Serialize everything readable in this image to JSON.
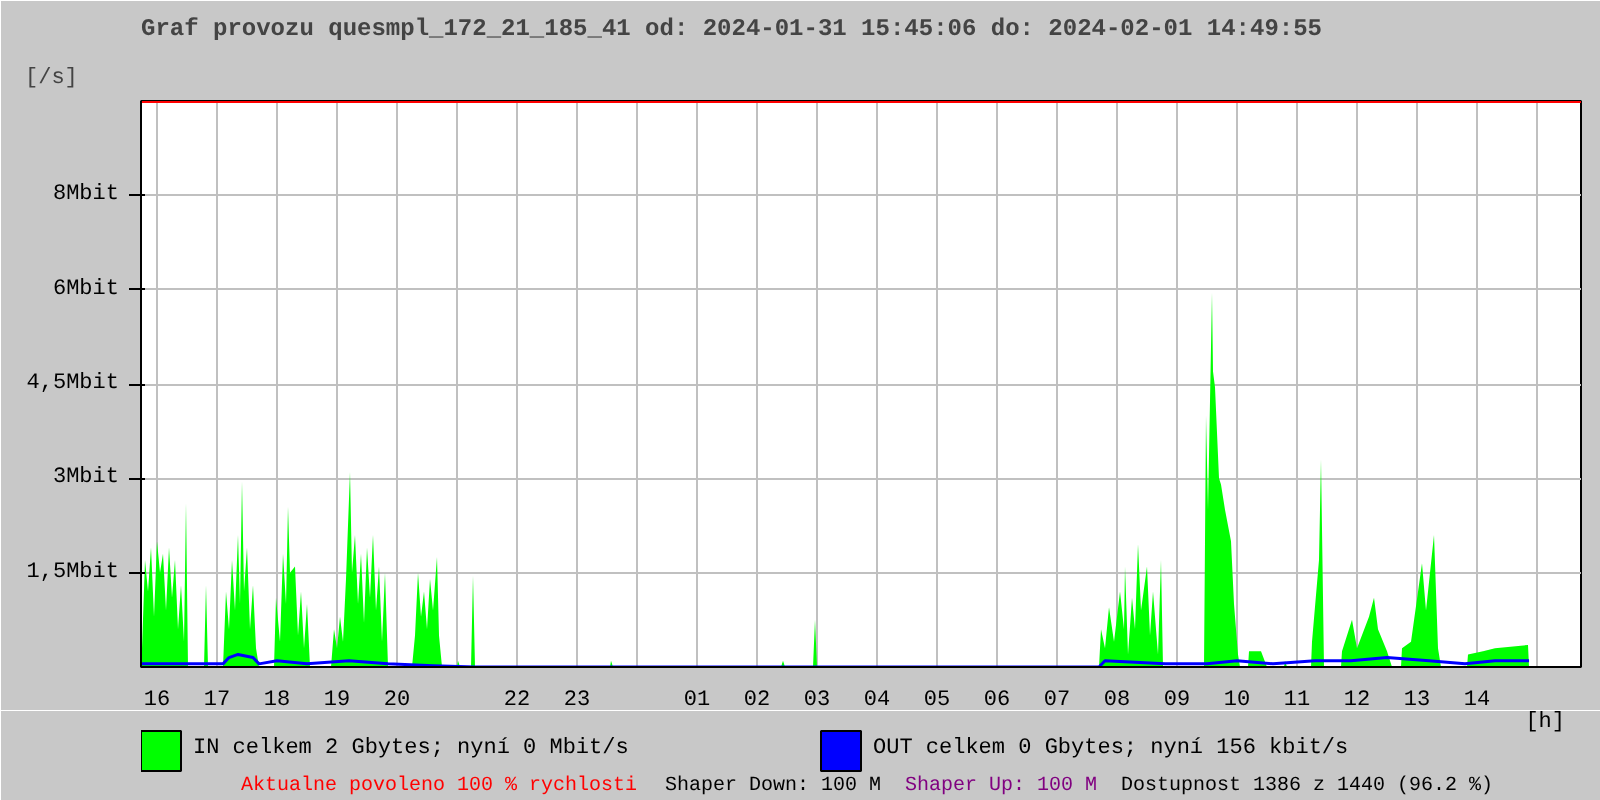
{
  "chart_data": {
    "type": "area",
    "title": "Graf provozu quesmpl_172_21_185_41 od: 2024-01-31 15:45:06 do: 2024-02-01 14:49:55",
    "xlabel": "[h]",
    "ylabel": "[/s]",
    "xlim": [
      "2024-01-31T15:44",
      "2024-02-01T15:44"
    ],
    "ylim": [
      0,
      9
    ],
    "xticks": [
      {
        "value": "2024-01-31T16:00",
        "label": "16"
      },
      {
        "value": "2024-01-31T17:00",
        "label": "17"
      },
      {
        "value": "2024-01-31T18:00",
        "label": "18"
      },
      {
        "value": "2024-01-31T19:00",
        "label": "19"
      },
      {
        "value": "2024-01-31T20:00",
        "label": "20"
      },
      {
        "value": "2024-01-31T21:00",
        "label": null
      },
      {
        "value": "2024-01-31T22:00",
        "label": "22"
      },
      {
        "value": "2024-01-31T23:00",
        "label": "23"
      },
      {
        "value": "2024-02-01T00:00",
        "label": null
      },
      {
        "value": "2024-02-01T01:00",
        "label": "01"
      },
      {
        "value": "2024-02-01T02:00",
        "label": "02"
      },
      {
        "value": "2024-02-01T03:00",
        "label": "03"
      },
      {
        "value": "2024-02-01T04:00",
        "label": "04"
      },
      {
        "value": "2024-02-01T05:00",
        "label": "05"
      },
      {
        "value": "2024-02-01T06:00",
        "label": "06"
      },
      {
        "value": "2024-02-01T07:00",
        "label": "07"
      },
      {
        "value": "2024-02-01T08:00",
        "label": "08"
      },
      {
        "value": "2024-02-01T09:00",
        "label": "09"
      },
      {
        "value": "2024-02-01T10:00",
        "label": "10"
      },
      {
        "value": "2024-02-01T11:00",
        "label": "11"
      },
      {
        "value": "2024-02-01T12:00",
        "label": "12"
      },
      {
        "value": "2024-02-01T13:00",
        "label": "13"
      },
      {
        "value": "2024-02-01T14:00",
        "label": "14"
      },
      {
        "value": "2024-02-01T15:00",
        "label": null
      }
    ],
    "yticks": [
      {
        "value": 1.5,
        "label": "1,5Mbit"
      },
      {
        "value": 3,
        "label": "3Mbit"
      },
      {
        "value": 4.5,
        "label": "4,5Mbit"
      },
      {
        "value": 6,
        "label": "6Mbit"
      },
      {
        "value": 7.5,
        "label": "8Mbit"
      }
    ],
    "grid": true,
    "legend": "bottom",
    "ref_lines": [
      {
        "axis": "y",
        "value": 9,
        "color": "#ff0000"
      }
    ],
    "series": [
      {
        "name": "IN celkem 2 Gbytes; nyní 0 Mbit/s",
        "color": "#00ff00",
        "x": [
          "2024-01-31T15:45",
          "2024-01-31T15:48",
          "2024-01-31T15:51",
          "2024-01-31T15:54",
          "2024-01-31T15:57",
          "2024-01-31T16:00",
          "2024-01-31T16:03",
          "2024-01-31T16:06",
          "2024-01-31T16:09",
          "2024-01-31T16:12",
          "2024-01-31T16:15",
          "2024-01-31T16:18",
          "2024-01-31T16:21",
          "2024-01-31T16:24",
          "2024-01-31T16:27",
          "2024-01-31T16:29",
          "2024-01-31T16:31",
          "2024-01-31T16:47",
          "2024-01-31T16:49",
          "2024-01-31T16:51",
          "2024-01-31T17:06",
          "2024-01-31T17:09",
          "2024-01-31T17:12",
          "2024-01-31T17:15",
          "2024-01-31T17:18",
          "2024-01-31T17:21",
          "2024-01-31T17:23",
          "2024-01-31T17:25",
          "2024-01-31T17:27",
          "2024-01-31T17:30",
          "2024-01-31T17:33",
          "2024-01-31T17:36",
          "2024-01-31T17:39",
          "2024-01-31T17:42",
          "2024-01-31T17:57",
          "2024-01-31T17:59",
          "2024-01-31T18:03",
          "2024-01-31T18:06",
          "2024-01-31T18:09",
          "2024-01-31T18:11",
          "2024-01-31T18:13",
          "2024-01-31T18:18",
          "2024-01-31T18:21",
          "2024-01-31T18:24",
          "2024-01-31T18:27",
          "2024-01-31T18:30",
          "2024-01-31T18:33",
          "2024-01-31T18:54",
          "2024-01-31T18:57",
          "2024-01-31T19:00",
          "2024-01-31T19:03",
          "2024-01-31T19:06",
          "2024-01-31T19:09",
          "2024-01-31T19:13",
          "2024-01-31T19:15",
          "2024-01-31T19:18",
          "2024-01-31T19:21",
          "2024-01-31T19:24",
          "2024-01-31T19:27",
          "2024-01-31T19:30",
          "2024-01-31T19:33",
          "2024-01-31T19:36",
          "2024-01-31T19:39",
          "2024-01-31T19:42",
          "2024-01-31T19:45",
          "2024-01-31T19:48",
          "2024-01-31T19:51",
          "2024-01-31T20:15",
          "2024-01-31T20:18",
          "2024-01-31T20:21",
          "2024-01-31T20:24",
          "2024-01-31T20:27",
          "2024-01-31T20:30",
          "2024-01-31T20:33",
          "2024-01-31T20:36",
          "2024-01-31T20:40",
          "2024-01-31T20:42",
          "2024-01-31T20:45",
          "2024-01-31T21:00",
          "2024-01-31T21:01",
          "2024-01-31T21:03",
          "2024-01-31T21:14",
          "2024-01-31T21:16",
          "2024-01-31T21:18",
          "2024-01-31T23:33",
          "2024-01-31T23:34",
          "2024-01-31T23:36",
          "2024-02-01T02:24",
          "2024-02-01T02:26",
          "2024-02-01T02:28",
          "2024-02-01T02:56",
          "2024-02-01T02:58",
          "2024-02-01T03:00",
          "2024-02-01T07:42",
          "2024-02-01T07:44",
          "2024-02-01T07:48",
          "2024-02-01T07:52",
          "2024-02-01T07:57",
          "2024-02-01T08:03",
          "2024-02-01T08:07",
          "2024-02-01T08:08",
          "2024-02-01T08:11",
          "2024-02-01T08:15",
          "2024-02-01T08:18",
          "2024-02-01T08:21",
          "2024-02-01T08:24",
          "2024-02-01T08:30",
          "2024-02-01T08:33",
          "2024-02-01T08:36",
          "2024-02-01T08:41",
          "2024-02-01T08:44",
          "2024-02-01T08:46",
          "2024-02-01T09:27",
          "2024-02-01T09:29",
          "2024-02-01T09:31",
          "2024-02-01T09:35",
          "2024-02-01T09:36",
          "2024-02-01T09:38",
          "2024-02-01T09:42",
          "2024-02-01T09:44",
          "2024-02-01T09:48",
          "2024-02-01T09:54",
          "2024-02-01T09:57",
          "2024-02-01T10:01",
          "2024-02-01T10:03",
          "2024-02-01T10:11",
          "2024-02-01T10:12",
          "2024-02-01T10:24",
          "2024-02-01T10:30",
          "2024-02-01T10:47",
          "2024-02-01T10:48",
          "2024-02-01T10:50",
          "2024-02-01T11:14",
          "2024-02-01T11:15",
          "2024-02-01T11:22",
          "2024-02-01T11:24",
          "2024-02-01T11:27",
          "2024-02-01T11:44",
          "2024-02-01T11:45",
          "2024-02-01T11:55",
          "2024-02-01T12:00",
          "2024-02-01T12:12",
          "2024-02-01T12:17",
          "2024-02-01T12:21",
          "2024-02-01T12:30",
          "2024-02-01T12:35",
          "2024-02-01T12:44",
          "2024-02-01T12:45",
          "2024-02-01T12:54",
          "2024-02-01T13:05",
          "2024-02-01T13:09",
          "2024-02-01T13:17",
          "2024-02-01T13:21",
          "2024-02-01T13:24",
          "2024-02-01T13:50",
          "2024-02-01T13:51",
          "2024-02-01T14:06",
          "2024-02-01T14:18",
          "2024-02-01T14:51",
          "2024-02-01T14:52"
        ],
        "values": [
          0.3,
          1.7,
          1.2,
          1.9,
          0.8,
          2.0,
          1.5,
          1.8,
          0.9,
          1.9,
          1.1,
          1.7,
          0.6,
          1.3,
          0.4,
          2.6,
          0.0,
          0.0,
          1.3,
          0.0,
          0.0,
          1.2,
          0.6,
          1.7,
          0.9,
          2.1,
          1.0,
          2.95,
          1.2,
          1.9,
          0.6,
          1.3,
          0.3,
          0.0,
          0.0,
          1.1,
          0.4,
          1.8,
          1.0,
          2.55,
          1.5,
          1.6,
          0.5,
          1.2,
          0.3,
          1.0,
          0.0,
          0.0,
          0.6,
          0.3,
          0.8,
          0.4,
          1.4,
          3.1,
          1.5,
          2.1,
          1.0,
          1.8,
          0.7,
          1.9,
          1.1,
          2.1,
          0.9,
          1.6,
          0.4,
          1.5,
          0.0,
          0.0,
          0.5,
          1.5,
          0.8,
          1.2,
          0.6,
          1.4,
          0.9,
          1.75,
          0.5,
          0.0,
          0.0,
          0.1,
          0.0,
          0.0,
          1.45,
          0.0,
          0.0,
          0.1,
          0.0,
          0.0,
          0.1,
          0.0,
          0.0,
          0.75,
          0.0,
          0.0,
          0.6,
          0.3,
          0.95,
          0.4,
          1.2,
          0.6,
          1.6,
          0.2,
          1.1,
          0.6,
          1.95,
          0.9,
          1.6,
          0.5,
          1.2,
          0.2,
          1.7,
          0.0,
          0.0,
          4.0,
          2.5,
          5.95,
          4.7,
          4.45,
          3.0,
          2.9,
          2.5,
          2.0,
          1.0,
          0.2,
          0.0,
          0.0,
          0.25,
          0.25,
          0.0,
          0.0,
          0.1,
          0.0,
          0.0,
          0.4,
          1.7,
          3.3,
          0.0,
          0.0,
          0.25,
          0.75,
          0.3,
          0.8,
          1.1,
          0.6,
          0.25,
          0.0,
          0.0,
          0.3,
          0.4,
          1.65,
          0.9,
          2.1,
          0.3,
          0.0,
          0.0,
          0.2,
          0.25,
          0.3,
          0.35,
          0.0
        ]
      },
      {
        "name": "OUT celkem 0 Gbytes; nyní 156 kbit/s",
        "color": "#0000ff",
        "type": "line",
        "x": [
          "2024-01-31T15:45",
          "2024-01-31T16:30",
          "2024-01-31T17:06",
          "2024-01-31T17:12",
          "2024-01-31T17:21",
          "2024-01-31T17:36",
          "2024-01-31T17:42",
          "2024-01-31T18:00",
          "2024-01-31T18:30",
          "2024-01-31T19:12",
          "2024-01-31T19:51",
          "2024-01-31T20:36",
          "2024-01-31T21:18",
          "2024-02-01T07:42",
          "2024-02-01T07:48",
          "2024-02-01T08:48",
          "2024-02-01T09:30",
          "2024-02-01T10:00",
          "2024-02-01T10:36",
          "2024-02-01T11:18",
          "2024-02-01T11:54",
          "2024-02-01T12:30",
          "2024-02-01T13:12",
          "2024-02-01T13:48",
          "2024-02-01T14:18",
          "2024-02-01T14:52"
        ],
        "values": [
          0.05,
          0.05,
          0.05,
          0.15,
          0.2,
          0.15,
          0.05,
          0.1,
          0.05,
          0.1,
          0.05,
          0.02,
          0.0,
          0.0,
          0.1,
          0.05,
          0.05,
          0.1,
          0.05,
          0.1,
          0.1,
          0.15,
          0.1,
          0.05,
          0.1,
          0.1
        ]
      }
    ],
    "annotations": [
      "Aktualne povoleno 100 % rychlosti",
      "Shaper Down: 100 M",
      "Shaper Up: 100 M",
      "Dostupnost 1386 z 1440 (96.2 %)"
    ]
  }
}
